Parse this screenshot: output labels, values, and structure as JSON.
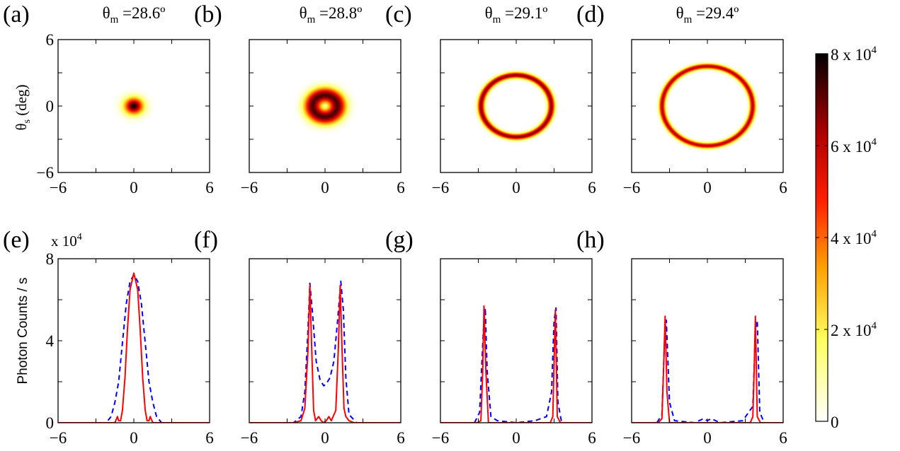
{
  "top_row": {
    "ylabel": "θs (deg)",
    "ylabel_main": "θ",
    "ylabel_sub": "s",
    "ylabel_rest": " (deg)",
    "xticks": [
      "−6",
      "0",
      "6"
    ],
    "yticks": [
      "6",
      "0",
      "−6"
    ]
  },
  "bottom_row": {
    "ylabel": "Photon Counts / s",
    "multiplier": "x 10",
    "multiplier_exp": "4",
    "xticks": [
      "−6",
      "0",
      "6"
    ],
    "yticks": [
      "8",
      "4",
      "0"
    ]
  },
  "colorbar": {
    "labels": [
      {
        "text": "8 x 10",
        "exp": "4"
      },
      {
        "text": "6 x 10",
        "exp": "4"
      },
      {
        "text": "4 x 10",
        "exp": "4"
      },
      {
        "text": "2 x 10",
        "exp": "4"
      },
      {
        "text": "0",
        "exp": ""
      }
    ],
    "range": [
      0,
      80000
    ],
    "colormap": "hot (white → yellow → orange → red → black)"
  },
  "colors": {
    "solid": "#ff0000",
    "dashed": "#0000ff",
    "axis": "#000000"
  },
  "chart_data": [
    {
      "type": "heatmap",
      "panel": "(a)",
      "title_main": "θ",
      "title_sub": "m",
      "title_rest": " =28.6º",
      "xlim": [
        -6,
        6
      ],
      "ylim": [
        -6,
        6
      ],
      "shape": "disk",
      "radius": 0.0,
      "width": 0.75,
      "peak": 78000
    },
    {
      "type": "heatmap",
      "panel": "(b)",
      "title_main": "θ",
      "title_sub": "m",
      "title_rest": " =28.8º",
      "xlim": [
        -6,
        6
      ],
      "ylim": [
        -6,
        6
      ],
      "shape": "ring",
      "radius": 1.0,
      "width": 0.7,
      "peak": 72000
    },
    {
      "type": "heatmap",
      "panel": "(c)",
      "title_main": "θ",
      "title_sub": "m",
      "title_rest": " =29.1º",
      "xlim": [
        -6,
        6
      ],
      "ylim": [
        -6,
        6
      ],
      "shape": "ring",
      "radius": 2.8,
      "width": 0.28,
      "peak": 65000
    },
    {
      "type": "heatmap",
      "panel": "(d)",
      "title_main": "θ",
      "title_sub": "m",
      "title_rest": " =29.4º",
      "xlim": [
        -6,
        6
      ],
      "ylim": [
        -6,
        6
      ],
      "shape": "ring",
      "radius": 3.6,
      "width": 0.25,
      "peak": 60000
    },
    {
      "type": "line",
      "panel": "(e)",
      "xlim": [
        -6,
        6
      ],
      "ylim": [
        0,
        8
      ],
      "series": [
        {
          "style": "solid",
          "color": "#ff0000",
          "x": [
            -6,
            -2,
            -1.5,
            -1.3,
            -1.2,
            -1.05,
            -0.9,
            -0.7,
            -0.5,
            -0.3,
            0,
            0.3,
            0.5,
            0.7,
            0.9,
            1.05,
            1.2,
            1.3,
            1.5,
            2,
            6
          ],
          "y": [
            0,
            0,
            0,
            0.3,
            0.1,
            0.1,
            0.6,
            2.2,
            4.6,
            6.5,
            7.3,
            6.5,
            4.6,
            2.2,
            0.6,
            0.1,
            0.1,
            0.3,
            0,
            0,
            0
          ]
        },
        {
          "style": "dashed",
          "color": "#0000ff",
          "x": [
            -6,
            -2.2,
            -1.8,
            -1.5,
            -1.2,
            -0.9,
            -0.6,
            -0.3,
            0,
            0.3,
            0.6,
            0.9,
            1.2,
            1.5,
            1.8,
            2.2,
            6
          ],
          "y": [
            0,
            0,
            0.3,
            1.0,
            2.0,
            3.9,
            5.8,
            6.9,
            7.2,
            6.9,
            5.8,
            3.9,
            2.0,
            1.0,
            0.3,
            0,
            0
          ]
        }
      ]
    },
    {
      "type": "line",
      "panel": "(f)",
      "xlim": [
        -6,
        6
      ],
      "ylim": [
        0,
        8
      ],
      "series": [
        {
          "style": "solid",
          "color": "#ff0000",
          "x": [
            -6,
            -2.5,
            -1.9,
            -1.6,
            -1.35,
            -1.2,
            -1.05,
            -0.9,
            -0.75,
            -0.5,
            -0.3,
            -0.1,
            0.1,
            0.3,
            0.5,
            0.85,
            1.05,
            1.2,
            1.35,
            1.5,
            1.65,
            1.9,
            2.3,
            6
          ],
          "y": [
            0,
            0,
            0.1,
            0.7,
            3.5,
            6.7,
            3.5,
            0.6,
            0.1,
            0.3,
            0.1,
            0,
            0.1,
            0.3,
            0.1,
            0.6,
            3.5,
            6.7,
            3.5,
            0.7,
            0.3,
            0.1,
            0,
            0
          ]
        },
        {
          "style": "dashed",
          "color": "#0000ff",
          "x": [
            -6,
            -2.5,
            -1.9,
            -1.6,
            -1.35,
            -1.2,
            -1.0,
            -0.7,
            -0.4,
            -0.1,
            0.1,
            0.4,
            0.7,
            1.0,
            1.25,
            1.45,
            1.65,
            1.9,
            2.5,
            6
          ],
          "y": [
            0,
            0,
            0.3,
            1.5,
            4.5,
            6.8,
            5.4,
            3.0,
            2.1,
            1.8,
            1.9,
            2.2,
            3.0,
            5.0,
            6.9,
            5.5,
            2.2,
            0.4,
            0,
            0
          ]
        }
      ]
    },
    {
      "type": "line",
      "panel": "(g)",
      "xlim": [
        -6,
        6
      ],
      "ylim": [
        0,
        8
      ],
      "series": [
        {
          "style": "solid",
          "color": "#ff0000",
          "x": [
            -6,
            -3.1,
            -2.8,
            -2.65,
            -2.55,
            -2.4,
            -2.2,
            2.7,
            2.9,
            3.0,
            3.1,
            3.25,
            3.5,
            6
          ],
          "y": [
            0,
            0,
            0.1,
            2.5,
            5.7,
            2.5,
            0,
            0,
            0.3,
            3.0,
            5.5,
            0.3,
            0,
            0
          ]
        },
        {
          "style": "dashed",
          "color": "#0000ff",
          "x": [
            -6,
            -3.3,
            -2.9,
            -2.6,
            -2.45,
            -2.3,
            -2.0,
            -1.5,
            0,
            1.5,
            2.4,
            2.8,
            3.0,
            3.15,
            3.3,
            3.6,
            6
          ],
          "y": [
            0,
            0,
            0.5,
            4.5,
            5.6,
            2.5,
            0.3,
            0.1,
            0,
            0.1,
            0.3,
            1.5,
            5.0,
            5.6,
            1.0,
            0,
            0
          ]
        }
      ]
    },
    {
      "type": "line",
      "panel": "(h)",
      "xlim": [
        -6,
        6
      ],
      "ylim": [
        0,
        8
      ],
      "series": [
        {
          "style": "solid",
          "color": "#ff0000",
          "x": [
            -6,
            -3.9,
            -3.6,
            -3.45,
            -3.35,
            -3.2,
            -3.0,
            3.4,
            3.6,
            3.7,
            3.8,
            3.95,
            4.2,
            6
          ],
          "y": [
            0,
            0,
            0.2,
            3.0,
            5.2,
            1.5,
            0,
            0,
            0.3,
            2.5,
            5.2,
            0.3,
            0,
            0
          ]
        },
        {
          "style": "dashed",
          "color": "#0000ff",
          "x": [
            -6,
            -4.0,
            -3.6,
            -3.4,
            -3.25,
            -3.0,
            -2.6,
            -1.0,
            -0.3,
            0,
            0.3,
            1.0,
            2.8,
            3.6,
            3.8,
            3.95,
            4.15,
            4.5,
            6
          ],
          "y": [
            0,
            0,
            0.4,
            4.0,
            5.0,
            1.0,
            0.1,
            0,
            0.2,
            0.1,
            0.2,
            0,
            0.1,
            0.8,
            4.5,
            5.0,
            0.5,
            0,
            0
          ]
        }
      ]
    }
  ]
}
